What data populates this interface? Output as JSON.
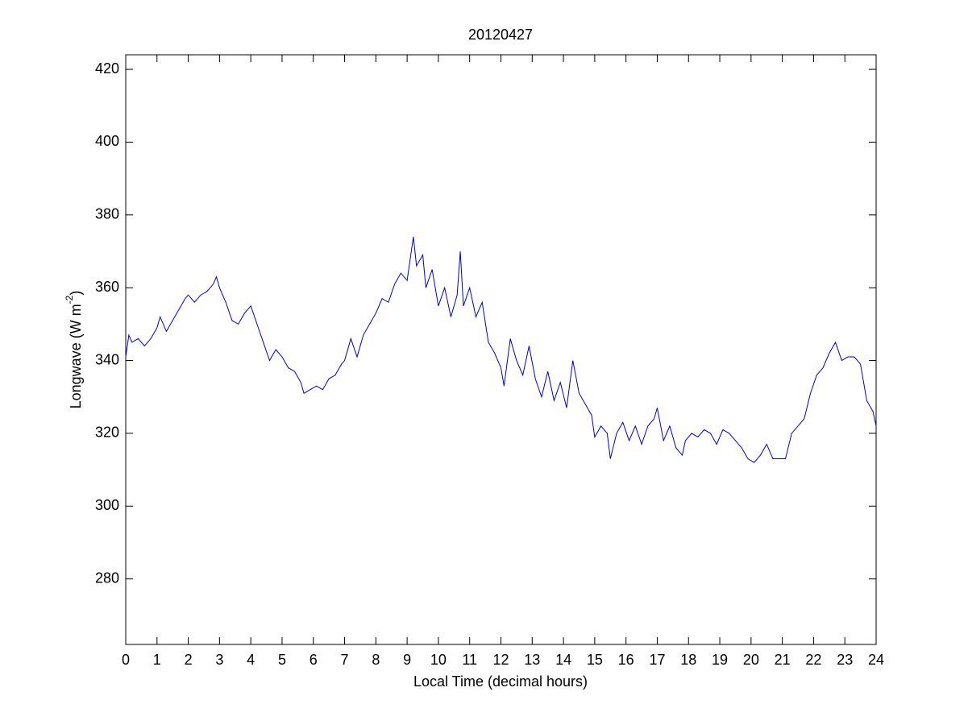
{
  "chart_data": {
    "type": "line",
    "title": "20120427",
    "xlabel": "Local Time (decimal hours)",
    "ylabel": {
      "text": "Longwave (W m",
      "superscript": "-2",
      "close": ")"
    },
    "xlim": [
      0,
      24
    ],
    "xticks": [
      0,
      1,
      2,
      3,
      4,
      5,
      6,
      7,
      8,
      9,
      10,
      11,
      12,
      13,
      14,
      15,
      16,
      17,
      18,
      19,
      20,
      21,
      22,
      23,
      24
    ],
    "ylim": [
      262,
      424
    ],
    "yticks": [
      280,
      300,
      320,
      340,
      360,
      380,
      400,
      420
    ],
    "grid": false,
    "series": [
      {
        "color": "#0000cc",
        "x": [
          0,
          0.1,
          0.2,
          0.4,
          0.6,
          0.8,
          1.0,
          1.1,
          1.3,
          1.5,
          1.7,
          1.9,
          2.0,
          2.2,
          2.4,
          2.6,
          2.8,
          2.9,
          3.0,
          3.2,
          3.4,
          3.6,
          3.8,
          4.0,
          4.2,
          4.4,
          4.6,
          4.8,
          5.0,
          5.2,
          5.4,
          5.6,
          5.7,
          5.9,
          6.1,
          6.3,
          6.5,
          6.7,
          6.9,
          7.0,
          7.2,
          7.4,
          7.6,
          7.8,
          8.0,
          8.2,
          8.4,
          8.6,
          8.8,
          9.0,
          9.1,
          9.2,
          9.3,
          9.5,
          9.6,
          9.8,
          10.0,
          10.2,
          10.4,
          10.6,
          10.7,
          10.8,
          11.0,
          11.2,
          11.4,
          11.6,
          11.8,
          12.0,
          12.1,
          12.3,
          12.5,
          12.7,
          12.9,
          13.1,
          13.3,
          13.5,
          13.7,
          13.9,
          14.1,
          14.3,
          14.5,
          14.7,
          14.9,
          15.0,
          15.2,
          15.4,
          15.5,
          15.7,
          15.9,
          16.1,
          16.3,
          16.5,
          16.7,
          16.9,
          17.0,
          17.2,
          17.4,
          17.6,
          17.8,
          17.9,
          18.1,
          18.3,
          18.5,
          18.7,
          18.9,
          19.1,
          19.3,
          19.5,
          19.7,
          19.9,
          20.1,
          20.3,
          20.5,
          20.7,
          20.9,
          21.1,
          21.3,
          21.5,
          21.7,
          21.9,
          22.1,
          22.3,
          22.5,
          22.7,
          22.9,
          23.1,
          23.3,
          23.5,
          23.6,
          23.7,
          23.9,
          24.0
        ],
        "values": [
          341,
          347,
          345,
          346,
          344,
          346,
          349,
          352,
          348,
          351,
          354,
          357,
          358,
          356,
          358,
          359,
          361,
          363,
          360,
          356,
          351,
          350,
          353,
          355,
          350,
          345,
          340,
          343,
          341,
          338,
          337,
          334,
          331,
          332,
          333,
          332,
          335,
          336,
          339,
          340,
          346,
          341,
          347,
          350,
          353,
          357,
          356,
          361,
          364,
          362,
          368,
          374,
          366,
          369,
          360,
          365,
          355,
          360,
          352,
          358,
          370,
          355,
          360,
          352,
          356,
          345,
          342,
          338,
          333,
          346,
          340,
          336,
          344,
          335,
          330,
          337,
          329,
          334,
          327,
          340,
          331,
          328,
          325,
          319,
          322,
          320,
          313,
          320,
          323,
          318,
          322,
          317,
          322,
          324,
          327,
          318,
          322,
          316,
          314,
          318,
          320,
          319,
          321,
          320,
          317,
          321,
          320,
          318,
          316,
          313,
          312,
          314,
          317,
          313,
          313,
          313,
          320,
          322,
          324,
          331,
          336,
          338,
          342,
          345,
          340,
          341,
          341,
          339,
          334,
          329,
          326,
          322
        ]
      }
    ]
  }
}
